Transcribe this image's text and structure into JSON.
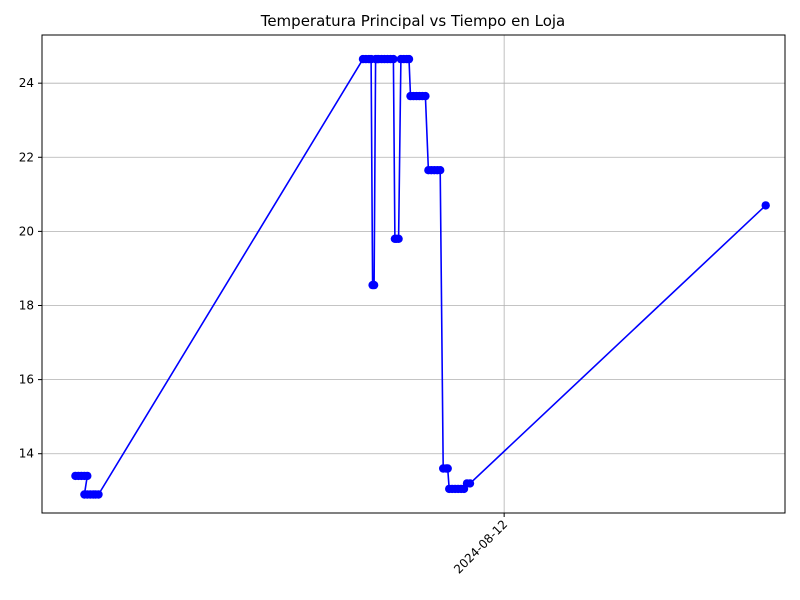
{
  "chart_data": {
    "type": "line",
    "title": "Temperatura Principal vs Tiempo en Loja",
    "xlabel": "",
    "ylabel": "",
    "grid": true,
    "color": "#0000ff",
    "marker": "circle",
    "xlim": [
      0,
      100
    ],
    "ylim": [
      12.4,
      25.3
    ],
    "yticks": [
      14,
      16,
      18,
      20,
      22,
      24
    ],
    "xticks": [
      {
        "x": 62.2,
        "label": "2024-08-12"
      }
    ],
    "x": [
      4.5,
      4.9,
      5.3,
      5.7,
      6.1,
      5.7,
      6.1,
      6.5,
      6.9,
      7.2,
      7.6,
      43.2,
      43.6,
      44.0,
      44.3,
      44.5,
      44.7,
      44.9,
      45.1,
      45.3,
      45.7,
      46.1,
      46.5,
      46.9,
      47.3,
      47.5,
      47.7,
      48.0,
      48.3,
      48.7,
      49.1,
      49.4,
      49.6,
      50.0,
      50.4,
      50.8,
      51.2,
      51.6,
      52.0,
      52.4,
      52.8,
      53.2,
      53.6,
      54.0,
      54.4,
      54.6,
      54.8,
      55.2,
      55.6,
      56.0,
      56.4,
      56.8,
      57.2,
      57.6,
      97.4
    ],
    "y": [
      13.4,
      13.4,
      13.4,
      13.4,
      13.4,
      12.9,
      12.9,
      12.9,
      12.9,
      12.9,
      12.9,
      24.65,
      24.65,
      24.65,
      24.65,
      18.55,
      18.55,
      24.65,
      24.65,
      24.65,
      24.65,
      24.65,
      24.65,
      24.65,
      24.65,
      19.8,
      19.8,
      19.8,
      24.65,
      24.65,
      24.65,
      24.65,
      23.65,
      23.65,
      23.65,
      23.65,
      23.65,
      23.65,
      21.65,
      21.65,
      21.65,
      21.65,
      21.65,
      13.6,
      13.6,
      13.6,
      13.05,
      13.05,
      13.05,
      13.05,
      13.05,
      13.05,
      13.2,
      13.2,
      20.7
    ]
  }
}
